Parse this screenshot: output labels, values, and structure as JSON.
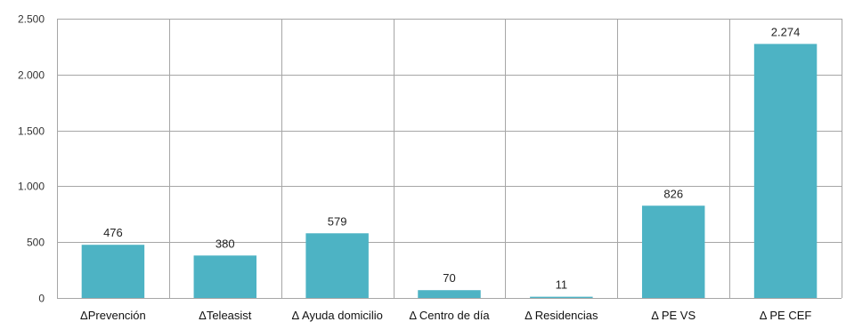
{
  "chart_data": {
    "type": "bar",
    "categories": [
      "ΔPrevención",
      "ΔTeleasist",
      "Δ Ayuda domicilio",
      "Δ Centro de día",
      "Δ Residencias",
      "Δ PE VS",
      "Δ PE CEF"
    ],
    "values": [
      476,
      380,
      579,
      70,
      11,
      826,
      2274
    ],
    "value_labels": [
      "476",
      "380",
      "579",
      "70",
      "11",
      "826",
      "2.274"
    ],
    "y_ticks": [
      0,
      500,
      1000,
      1500,
      2000,
      2500
    ],
    "y_tick_labels": [
      "0",
      "500",
      "1.000",
      "1.500",
      "2.000",
      "2.500"
    ],
    "ylim": [
      0,
      2500
    ],
    "grid": "horizontal and vertical",
    "legend": "none",
    "title": "",
    "xlabel": "",
    "ylabel": "",
    "colors": {
      "bar": "#4db3c4",
      "grid": "#a6a6a6",
      "axis": "#7f7f7f"
    }
  }
}
